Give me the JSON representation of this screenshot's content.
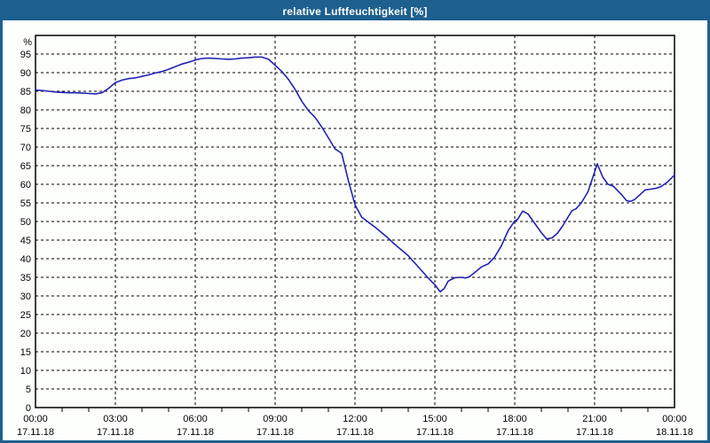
{
  "window": {
    "title": "relative Luftfeuchtigkeit [%]"
  },
  "colors": {
    "titlebar": "#1d5f8e",
    "window_border": "#1d5f8e",
    "background": "#fdfffd",
    "grid": "#000000",
    "axis": "#000000",
    "text": "#000000",
    "title_text": "#ffffff",
    "line": "#2222b2"
  },
  "chart_data": {
    "type": "line",
    "title": "relative Luftfeuchtigkeit [%]",
    "unit_label": "%",
    "xlim_hours": [
      0,
      24
    ],
    "ylim": [
      0,
      100
    ],
    "grid": "dashed; horizontal every 5 units (5-95), vertical every 3 h, minor ticks every hour on x-axis",
    "legend_position": "none",
    "y_ticks": [
      0,
      5,
      10,
      15,
      20,
      25,
      30,
      35,
      40,
      45,
      50,
      55,
      60,
      65,
      70,
      75,
      80,
      85,
      90,
      95
    ],
    "x_ticks": [
      {
        "hour": 0,
        "time": "00:00",
        "date": "17.11.18"
      },
      {
        "hour": 3,
        "time": "03:00",
        "date": "17.11.18"
      },
      {
        "hour": 6,
        "time": "06:00",
        "date": "17.11.18"
      },
      {
        "hour": 9,
        "time": "09:00",
        "date": "17.11.18"
      },
      {
        "hour": 12,
        "time": "12:00",
        "date": "17.11.18"
      },
      {
        "hour": 15,
        "time": "15:00",
        "date": "17.11.18"
      },
      {
        "hour": 18,
        "time": "18:00",
        "date": "17.11.18"
      },
      {
        "hour": 21,
        "time": "21:00",
        "date": "17.11.18"
      },
      {
        "hour": 24,
        "time": "00:00",
        "date": "18.11.18"
      }
    ],
    "series": [
      {
        "name": "relative Luftfeuchtigkeit",
        "unit": "%",
        "color": "#2222b2",
        "points": [
          [
            0.0,
            85.3
          ],
          [
            0.25,
            85.2
          ],
          [
            0.5,
            85.0
          ],
          [
            0.75,
            84.8
          ],
          [
            1.0,
            84.7
          ],
          [
            1.25,
            84.6
          ],
          [
            1.5,
            84.6
          ],
          [
            1.75,
            84.5
          ],
          [
            2.0,
            84.4
          ],
          [
            2.25,
            84.3
          ],
          [
            2.5,
            84.6
          ],
          [
            2.75,
            85.8
          ],
          [
            3.0,
            87.3
          ],
          [
            3.25,
            88.0
          ],
          [
            3.5,
            88.4
          ],
          [
            3.75,
            88.6
          ],
          [
            4.0,
            89.0
          ],
          [
            4.25,
            89.4
          ],
          [
            4.5,
            89.9
          ],
          [
            4.75,
            90.3
          ],
          [
            5.0,
            90.9
          ],
          [
            5.25,
            91.6
          ],
          [
            5.5,
            92.3
          ],
          [
            5.75,
            92.8
          ],
          [
            6.0,
            93.4
          ],
          [
            6.25,
            93.8
          ],
          [
            6.5,
            93.9
          ],
          [
            6.75,
            93.8
          ],
          [
            7.0,
            93.7
          ],
          [
            7.25,
            93.6
          ],
          [
            7.5,
            93.7
          ],
          [
            7.75,
            93.9
          ],
          [
            8.0,
            94.0
          ],
          [
            8.25,
            94.2
          ],
          [
            8.5,
            94.2
          ],
          [
            8.75,
            93.6
          ],
          [
            9.0,
            92.0
          ],
          [
            9.25,
            90.3
          ],
          [
            9.5,
            88.2
          ],
          [
            9.75,
            85.5
          ],
          [
            10.0,
            82.3
          ],
          [
            10.25,
            79.8
          ],
          [
            10.5,
            78.0
          ],
          [
            10.75,
            75.4
          ],
          [
            11.0,
            72.5
          ],
          [
            11.25,
            69.5
          ],
          [
            11.4,
            68.8
          ],
          [
            11.5,
            68.3
          ],
          [
            11.75,
            61.0
          ],
          [
            12.0,
            54.5
          ],
          [
            12.25,
            51.2
          ],
          [
            12.5,
            49.8
          ],
          [
            12.75,
            48.5
          ],
          [
            13.0,
            47.0
          ],
          [
            13.25,
            45.5
          ],
          [
            13.5,
            43.8
          ],
          [
            13.75,
            42.3
          ],
          [
            14.0,
            40.8
          ],
          [
            14.25,
            38.8
          ],
          [
            14.5,
            36.8
          ],
          [
            14.75,
            34.8
          ],
          [
            15.0,
            33.0
          ],
          [
            15.2,
            31.1
          ],
          [
            15.35,
            32.0
          ],
          [
            15.5,
            34.0
          ],
          [
            15.75,
            34.9
          ],
          [
            16.0,
            35.0
          ],
          [
            16.15,
            34.8
          ],
          [
            16.3,
            35.2
          ],
          [
            16.5,
            36.3
          ],
          [
            16.75,
            37.8
          ],
          [
            17.0,
            38.6
          ],
          [
            17.25,
            40.5
          ],
          [
            17.5,
            43.5
          ],
          [
            17.75,
            47.5
          ],
          [
            18.0,
            50.2
          ],
          [
            18.1,
            50.5
          ],
          [
            18.3,
            52.8
          ],
          [
            18.5,
            52.0
          ],
          [
            18.75,
            49.5
          ],
          [
            19.0,
            47.0
          ],
          [
            19.2,
            45.3
          ],
          [
            19.4,
            45.6
          ],
          [
            19.6,
            46.8
          ],
          [
            19.8,
            48.8
          ],
          [
            20.0,
            51.2
          ],
          [
            20.15,
            52.9
          ],
          [
            20.3,
            53.4
          ],
          [
            20.5,
            55.0
          ],
          [
            20.75,
            58.0
          ],
          [
            21.0,
            63.3
          ],
          [
            21.1,
            65.5
          ],
          [
            21.3,
            62.0
          ],
          [
            21.5,
            60.0
          ],
          [
            21.7,
            59.5
          ],
          [
            22.0,
            57.3
          ],
          [
            22.2,
            55.6
          ],
          [
            22.35,
            55.4
          ],
          [
            22.5,
            55.9
          ],
          [
            22.7,
            57.2
          ],
          [
            22.9,
            58.5
          ],
          [
            23.1,
            58.7
          ],
          [
            23.3,
            58.9
          ],
          [
            23.5,
            59.4
          ],
          [
            23.75,
            60.7
          ],
          [
            24.0,
            62.5
          ]
        ]
      }
    ]
  }
}
